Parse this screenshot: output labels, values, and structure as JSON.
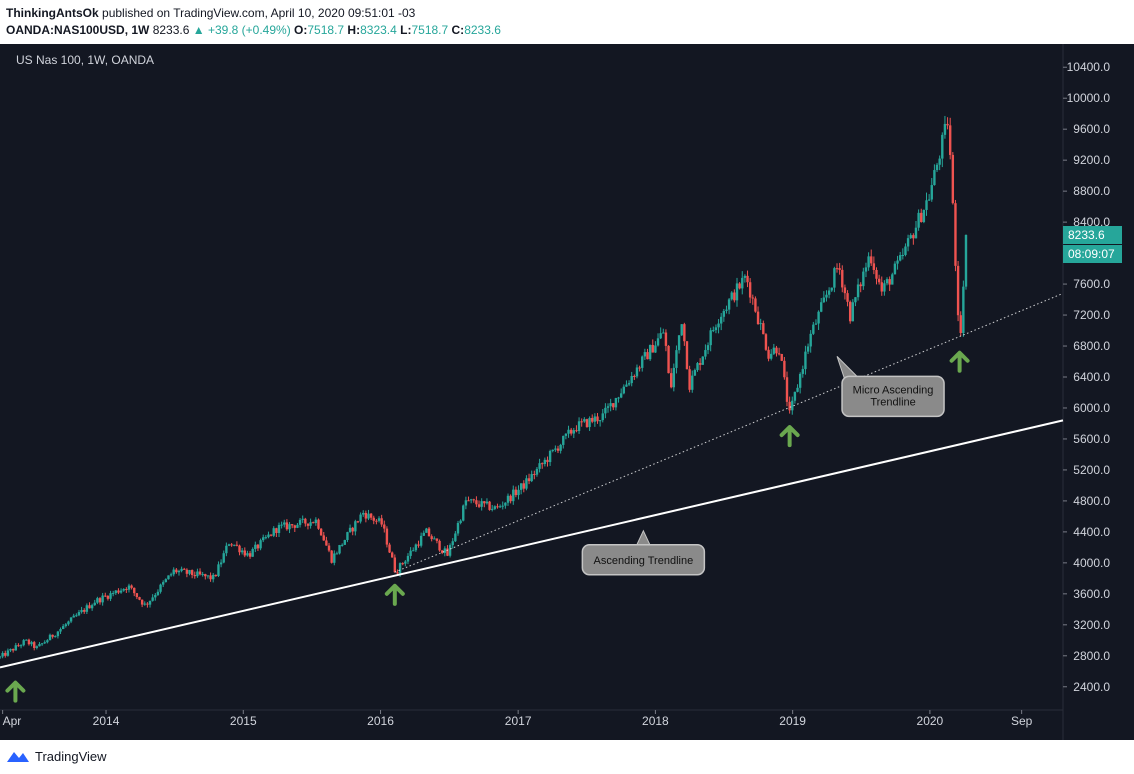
{
  "header": {
    "author": "ThinkingAntsOk",
    "published_text": "published on TradingView.com, April 10, 2020 09:51:01 -03",
    "symbol": "OANDA:NAS100USD, 1W",
    "last": "8233.6",
    "change": "▲ +39.8 (+0.49%)",
    "o_label": "O:",
    "o_value": "7518.7",
    "h_label": "H:",
    "h_value": "8323.4",
    "l_label": "L:",
    "l_value": "7518.7",
    "c_label": "C:",
    "c_value": "8233.6"
  },
  "footer": {
    "brand": "TradingView"
  },
  "colors": {
    "background": "#131722",
    "up": "#26a69a",
    "down": "#ef5350",
    "arrow": "#6aa84f",
    "trendline": "#ffffff"
  },
  "chart_data": {
    "type": "candlestick",
    "title": "US Nas 100, 1W, OANDA",
    "ylim": [
      2100,
      10700
    ],
    "y_ticks": [
      2400,
      2800,
      3200,
      3600,
      4000,
      4400,
      4800,
      5200,
      5600,
      6000,
      6400,
      6800,
      7200,
      7600,
      8000,
      8400,
      8800,
      9200,
      9600,
      10000,
      10400
    ],
    "y_tick_labels": [
      "2400.0",
      "2800.0",
      "3200.0",
      "3600.0",
      "4000.0",
      "4400.0",
      "4800.0",
      "5200.0",
      "5600.0",
      "6000.0",
      "6400.0",
      "6800.0",
      "7200.0",
      "7600.0",
      "8000.0",
      "8400.0",
      "8800.0",
      "9200.0",
      "9600.0",
      "10000.0",
      "10400.0"
    ],
    "xlim": [
      "2013-03-25",
      "2020-12-20"
    ],
    "x_ticks": [
      {
        "label": "Apr",
        "date": "2013-04-01"
      },
      {
        "label": "2014",
        "date": "2014-01-01"
      },
      {
        "label": "2015",
        "date": "2015-01-01"
      },
      {
        "label": "2016",
        "date": "2016-01-01"
      },
      {
        "label": "2017",
        "date": "2017-01-01"
      },
      {
        "label": "2018",
        "date": "2018-01-01"
      },
      {
        "label": "2019",
        "date": "2019-01-01"
      },
      {
        "label": "2020",
        "date": "2020-01-01"
      },
      {
        "label": "Sep",
        "date": "2020-09-01"
      }
    ],
    "price_path": [
      [
        "2013-03-25",
        2780
      ],
      [
        "2013-06-01",
        2990
      ],
      [
        "2013-07-01",
        2900
      ],
      [
        "2013-12-01",
        3500
      ],
      [
        "2014-03-01",
        3700
      ],
      [
        "2014-04-15",
        3450
      ],
      [
        "2014-07-01",
        3900
      ],
      [
        "2014-10-15",
        3800
      ],
      [
        "2014-11-25",
        4280
      ],
      [
        "2015-01-15",
        4100
      ],
      [
        "2015-04-01",
        4450
      ],
      [
        "2015-07-15",
        4550
      ],
      [
        "2015-08-24",
        4050
      ],
      [
        "2015-11-15",
        4650
      ],
      [
        "2016-01-05",
        4500
      ],
      [
        "2016-02-10",
        3880
      ],
      [
        "2016-05-01",
        4400
      ],
      [
        "2016-06-27",
        4100
      ],
      [
        "2016-08-15",
        4800
      ],
      [
        "2016-11-05",
        4700
      ],
      [
        "2017-01-15",
        5000
      ],
      [
        "2017-06-01",
        5750
      ],
      [
        "2017-08-15",
        5900
      ],
      [
        "2018-01-25",
        7000
      ],
      [
        "2018-02-09",
        6200
      ],
      [
        "2018-03-12",
        7150
      ],
      [
        "2018-04-02",
        6300
      ],
      [
        "2018-06-15",
        7150
      ],
      [
        "2018-08-30",
        7700
      ],
      [
        "2018-10-29",
        6700
      ],
      [
        "2018-11-25",
        6800
      ],
      [
        "2018-12-24",
        5900
      ],
      [
        "2019-02-15",
        6900
      ],
      [
        "2019-05-03",
        7850
      ],
      [
        "2019-06-03",
        7200
      ],
      [
        "2019-07-26",
        8000
      ],
      [
        "2019-08-26",
        7500
      ],
      [
        "2019-10-15",
        7900
      ],
      [
        "2019-12-31",
        8750
      ],
      [
        "2020-02-19",
        9740
      ],
      [
        "2020-03-20",
        6850
      ],
      [
        "2020-04-10",
        8233.6
      ]
    ],
    "trendlines": [
      {
        "label": "Ascending Trendline",
        "style": "solid",
        "points": [
          [
            "2013-03-25",
            2650
          ],
          [
            "2020-12-20",
            5840
          ]
        ]
      },
      {
        "label": "Micro Ascending Trendline",
        "style": "dotted",
        "points": [
          [
            "2016-02-08",
            3880
          ],
          [
            "2020-12-20",
            7480
          ]
        ]
      }
    ],
    "annotations": [
      {
        "text": "Ascending Trendline",
        "date": "2017-11-30",
        "price": 4040
      },
      {
        "text": "Micro Ascending Trendline",
        "date": "2019-09-25",
        "price": 6150
      }
    ],
    "markers": [
      {
        "type": "up-arrow",
        "date": "2013-05-05",
        "price": 2350
      },
      {
        "type": "up-arrow",
        "date": "2016-02-08",
        "price": 3600
      },
      {
        "type": "up-arrow",
        "date": "2018-12-24",
        "price": 5650
      },
      {
        "type": "up-arrow",
        "date": "2020-03-20",
        "price": 6610
      }
    ],
    "last_price_label": "8233.6",
    "countdown_label": "08:09:07"
  }
}
